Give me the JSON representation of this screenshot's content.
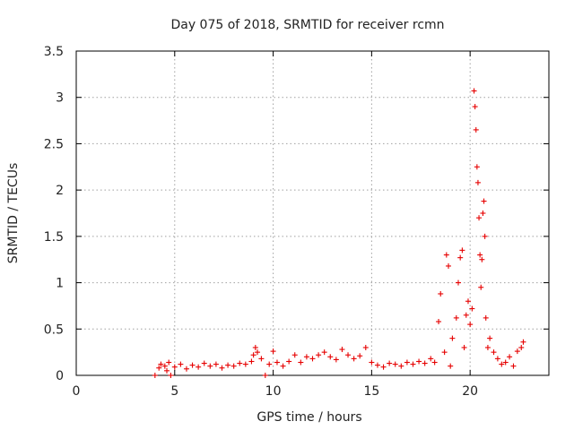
{
  "chart_data": {
    "type": "scatter",
    "title": "Day 075 of 2018, SRMTID for receiver rcmn",
    "xlabel": "GPS time / hours",
    "ylabel": "SRMTID / TECUs",
    "xlim": [
      0,
      24
    ],
    "ylim": [
      0,
      3.5
    ],
    "xticks": [
      0,
      5,
      10,
      15,
      20
    ],
    "xtick_labels": [
      "0",
      "5",
      "10",
      "15",
      "20"
    ],
    "yticks": [
      0,
      0.5,
      1,
      1.5,
      2,
      2.5,
      3,
      3.5
    ],
    "ytick_labels": [
      "0",
      "0.5",
      "1",
      "1.5",
      "2",
      "2.5",
      "3",
      "3.5"
    ],
    "grid": true,
    "marker": "+",
    "colors": {
      "points": "#e60000",
      "grid": "#a0a0a0",
      "axes": "#000000"
    },
    "series": [
      {
        "name": "SRMTID",
        "points": [
          [
            4.0,
            0.0
          ],
          [
            4.2,
            0.08
          ],
          [
            4.3,
            0.12
          ],
          [
            4.5,
            0.1
          ],
          [
            4.6,
            0.05
          ],
          [
            4.7,
            0.14
          ],
          [
            4.8,
            0.0
          ],
          [
            5.0,
            0.09
          ],
          [
            5.3,
            0.12
          ],
          [
            5.6,
            0.07
          ],
          [
            5.9,
            0.11
          ],
          [
            6.2,
            0.09
          ],
          [
            6.5,
            0.13
          ],
          [
            6.8,
            0.1
          ],
          [
            7.1,
            0.12
          ],
          [
            7.4,
            0.08
          ],
          [
            7.7,
            0.11
          ],
          [
            8.0,
            0.1
          ],
          [
            8.3,
            0.13
          ],
          [
            8.6,
            0.12
          ],
          [
            8.9,
            0.15
          ],
          [
            9.0,
            0.22
          ],
          [
            9.1,
            0.3
          ],
          [
            9.2,
            0.25
          ],
          [
            9.4,
            0.18
          ],
          [
            9.6,
            0.0
          ],
          [
            9.8,
            0.12
          ],
          [
            10.0,
            0.26
          ],
          [
            10.2,
            0.14
          ],
          [
            10.5,
            0.1
          ],
          [
            10.8,
            0.15
          ],
          [
            11.1,
            0.22
          ],
          [
            11.4,
            0.14
          ],
          [
            11.7,
            0.2
          ],
          [
            12.0,
            0.18
          ],
          [
            12.3,
            0.22
          ],
          [
            12.6,
            0.25
          ],
          [
            12.9,
            0.2
          ],
          [
            13.2,
            0.17
          ],
          [
            13.5,
            0.28
          ],
          [
            13.8,
            0.22
          ],
          [
            14.1,
            0.18
          ],
          [
            14.4,
            0.21
          ],
          [
            14.7,
            0.3
          ],
          [
            15.0,
            0.14
          ],
          [
            15.3,
            0.11
          ],
          [
            15.6,
            0.09
          ],
          [
            15.9,
            0.13
          ],
          [
            16.2,
            0.12
          ],
          [
            16.5,
            0.1
          ],
          [
            16.8,
            0.14
          ],
          [
            17.1,
            0.12
          ],
          [
            17.4,
            0.15
          ],
          [
            17.7,
            0.13
          ],
          [
            18.0,
            0.18
          ],
          [
            18.2,
            0.14
          ],
          [
            18.4,
            0.58
          ],
          [
            18.5,
            0.88
          ],
          [
            18.7,
            0.25
          ],
          [
            18.8,
            1.3
          ],
          [
            18.9,
            1.18
          ],
          [
            19.0,
            0.1
          ],
          [
            19.1,
            0.4
          ],
          [
            19.3,
            0.62
          ],
          [
            19.4,
            1.0
          ],
          [
            19.5,
            1.27
          ],
          [
            19.6,
            1.35
          ],
          [
            19.7,
            0.3
          ],
          [
            19.8,
            0.65
          ],
          [
            19.9,
            0.8
          ],
          [
            20.0,
            0.55
          ],
          [
            20.1,
            0.72
          ],
          [
            20.2,
            3.07
          ],
          [
            20.25,
            2.9
          ],
          [
            20.3,
            2.65
          ],
          [
            20.35,
            2.25
          ],
          [
            20.4,
            2.08
          ],
          [
            20.45,
            1.7
          ],
          [
            20.5,
            1.3
          ],
          [
            20.55,
            0.95
          ],
          [
            20.6,
            1.25
          ],
          [
            20.65,
            1.75
          ],
          [
            20.7,
            1.88
          ],
          [
            20.75,
            1.5
          ],
          [
            20.8,
            0.62
          ],
          [
            20.9,
            0.3
          ],
          [
            21.0,
            0.4
          ],
          [
            21.2,
            0.25
          ],
          [
            21.4,
            0.18
          ],
          [
            21.6,
            0.12
          ],
          [
            21.8,
            0.14
          ],
          [
            22.0,
            0.2
          ],
          [
            22.2,
            0.1
          ],
          [
            22.4,
            0.26
          ],
          [
            22.6,
            0.3
          ],
          [
            22.7,
            0.36
          ]
        ]
      }
    ]
  }
}
